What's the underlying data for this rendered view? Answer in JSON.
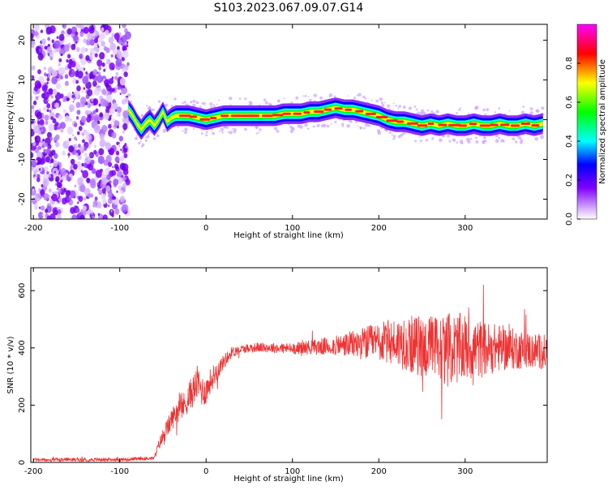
{
  "figure": {
    "title": "S103.2023.067.09.07.G14"
  },
  "chart_data": [
    {
      "type": "heatmap",
      "title": "",
      "xlabel": "Height of straight line (km)",
      "ylabel": "Frequency (Hz)",
      "xlim": [
        -203,
        395
      ],
      "ylim": [
        -25,
        24
      ],
      "x_ticks": [
        -200,
        -100,
        0,
        100,
        200,
        300
      ],
      "y_ticks": [
        -20,
        -10,
        0,
        10,
        20
      ],
      "grid": false,
      "colorbar": {
        "label": "Normalized spectral amplitude",
        "range": [
          0,
          1
        ],
        "ticks": [
          "0.0",
          "0.2",
          "0.4",
          "0.6",
          "0.8"
        ],
        "colors": [
          "#ffffff",
          "#7f00ff",
          "#0000ff",
          "#00ffff",
          "#00ff00",
          "#ffff00",
          "#ff0000",
          "#ff00ff"
        ]
      },
      "noise_region_x": [
        -203,
        -90
      ],
      "ridge": {
        "x": [
          -90,
          -85,
          -80,
          -75,
          -70,
          -65,
          -60,
          -55,
          -50,
          -45,
          -40,
          -35,
          -30,
          -20,
          -10,
          0,
          10,
          20,
          30,
          40,
          50,
          60,
          70,
          80,
          90,
          100,
          110,
          120,
          130,
          140,
          150,
          160,
          170,
          180,
          190,
          200,
          210,
          220,
          230,
          240,
          250,
          260,
          270,
          280,
          290,
          300,
          310,
          320,
          330,
          340,
          350,
          360,
          370,
          380,
          390
        ],
        "y": [
          2.5,
          1,
          -1,
          -2.5,
          -1,
          0,
          -1.5,
          0,
          2,
          -0.5,
          0.5,
          1,
          1,
          1,
          0.5,
          0,
          0.5,
          1,
          1,
          1,
          1,
          1,
          1,
          1,
          1.5,
          1.5,
          1.5,
          2,
          2,
          2.5,
          3,
          2.5,
          2.5,
          2,
          1.5,
          1,
          0,
          -0.5,
          -0.5,
          -1,
          -1.5,
          -1,
          -1.5,
          -1,
          -1.5,
          -1.5,
          -1,
          -1.5,
          -1.5,
          -1,
          -1.5,
          -1.5,
          -1,
          -1.5,
          -1
        ]
      }
    },
    {
      "type": "line",
      "title": "",
      "xlabel": "Height of straight line (km)",
      "ylabel": "SNR (10 * v/v)",
      "xlim": [
        -203,
        395
      ],
      "ylim": [
        0,
        680
      ],
      "x_ticks": [
        -200,
        -100,
        0,
        100,
        200,
        300
      ],
      "y_ticks": [
        0,
        200,
        400,
        600
      ],
      "grid": false,
      "color": "#ee3333",
      "series": [
        {
          "x": [
            -200,
            -180,
            -160,
            -140,
            -120,
            -100,
            -80,
            -60,
            -55,
            -50,
            -45,
            -40,
            -35,
            -30,
            -25,
            -20,
            -15,
            -10,
            -5,
            0,
            5,
            10,
            15,
            20,
            25,
            30,
            35,
            40,
            50,
            60,
            80,
            100,
            120,
            140,
            160,
            180,
            200,
            220,
            240,
            260,
            280,
            300,
            320,
            340,
            360,
            380,
            395
          ],
          "y": [
            10,
            8,
            10,
            9,
            10,
            10,
            12,
            15,
            60,
            90,
            120,
            150,
            175,
            190,
            200,
            230,
            250,
            280,
            250,
            250,
            285,
            310,
            330,
            350,
            370,
            385,
            390,
            395,
            400,
            402,
            400,
            398,
            402,
            405,
            410,
            415,
            420,
            420,
            410,
            400,
            395,
            400,
            395,
            400,
            395,
            390,
            385
          ]
        }
      ],
      "spread": {
        "x": [
          -200,
          -60,
          -50,
          -30,
          -10,
          0,
          20,
          40,
          100,
          150,
          200,
          250,
          280,
          300,
          330,
          360,
          395
        ],
        "amp": [
          6,
          6,
          30,
          45,
          60,
          50,
          25,
          15,
          20,
          35,
          70,
          110,
          130,
          120,
          90,
          70,
          60
        ]
      }
    }
  ]
}
